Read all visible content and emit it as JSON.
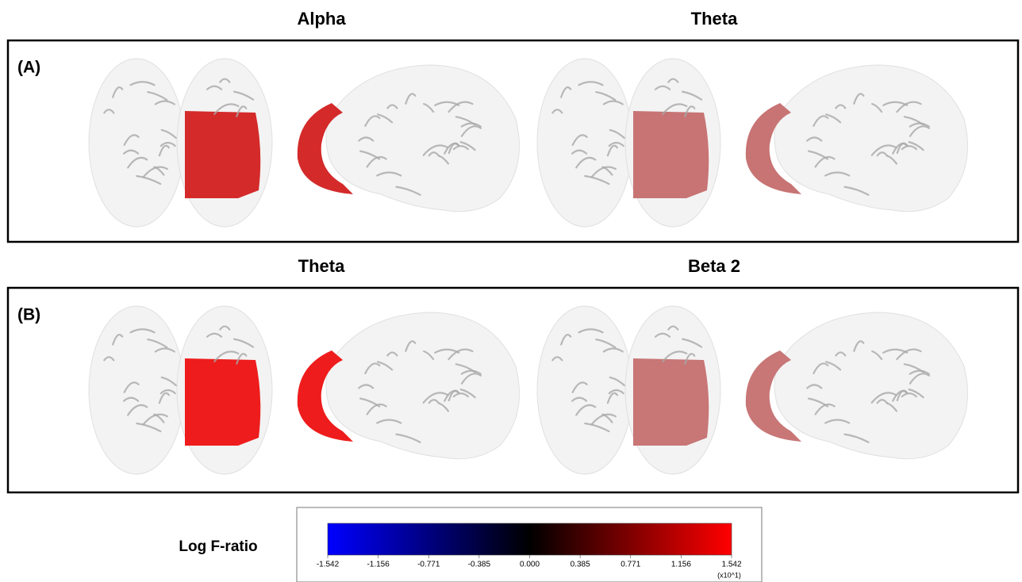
{
  "panels": [
    {
      "label": "(A)",
      "figures": [
        {
          "title": "Alpha",
          "highlight": "#d42a2a"
        },
        {
          "title": "Theta",
          "highlight": "#c87474"
        }
      ]
    },
    {
      "label": "(B)",
      "figures": [
        {
          "title": "Theta",
          "highlight": "#ee1c1c"
        },
        {
          "title": "Beta 2",
          "highlight": "#c87676"
        }
      ]
    }
  ],
  "colorbar": {
    "label": "Log F-ratio",
    "ticks": [
      "-1.542",
      "-1.156",
      "-0.771",
      "-0.385",
      "0.000",
      "0.385",
      "0.771",
      "1.156",
      "1.542"
    ],
    "multiplier": "(x10^1)",
    "colors": [
      "#0000ff",
      "#000000",
      "#ff0000"
    ]
  }
}
